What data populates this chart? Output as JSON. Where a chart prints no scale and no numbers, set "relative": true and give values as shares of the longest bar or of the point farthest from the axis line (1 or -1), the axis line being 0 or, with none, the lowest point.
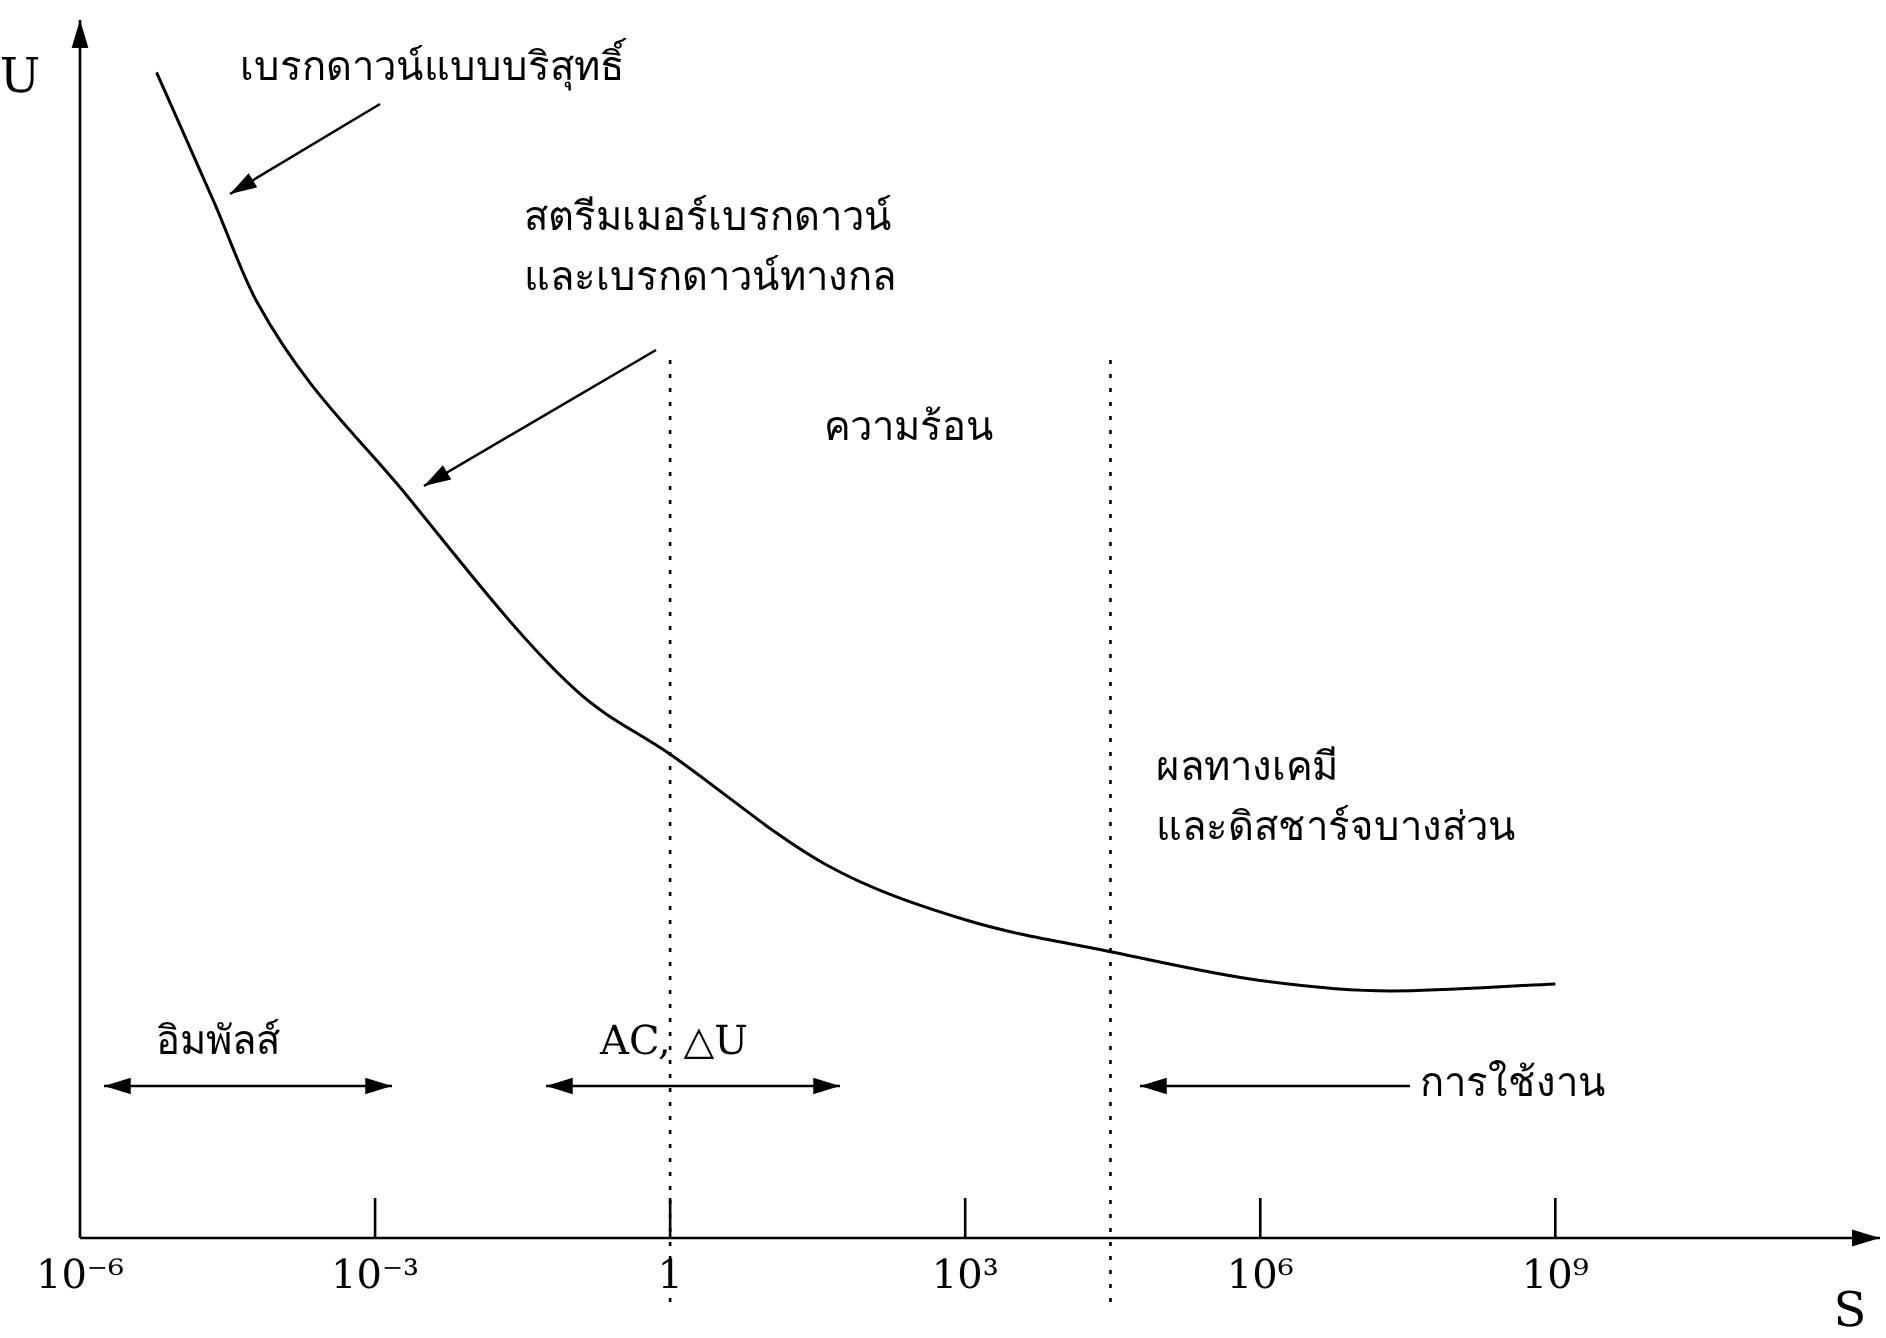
{
  "chart_data": {
    "type": "line",
    "relative": true,
    "xlabel": "S",
    "ylabel": "U",
    "log": "x",
    "x": [
      6e-06,
      2.3e-05,
      6.3e-05,
      0.0021,
      0.11,
      1,
      39,
      1000,
      33000,
      1000000,
      21000000,
      1000000000
    ],
    "series": [
      {
        "color": "#000000",
        "values": [
          1,
          0.889,
          0.803,
          0.637,
          0.47,
          0.415,
          0.32,
          0.273,
          0.245,
          0.221,
          0.212,
          0.218
        ]
      }
    ],
    "xlim": [
      1e-06,
      2000000000000.0
    ],
    "xticks": [
      {
        "value": 1e-06,
        "label": "10⁻⁶"
      },
      {
        "value": 0.001,
        "label": "10⁻³"
      },
      1,
      {
        "value": 1000,
        "label": "10³"
      },
      {
        "value": 1000000,
        "label": "10⁶"
      },
      {
        "value": 1000000000,
        "label": "10⁹"
      }
    ],
    "ref_lines": [
      {
        "axis": "x",
        "value": 1,
        "line_style": "dotted",
        "color": "#000000"
      },
      {
        "axis": "x",
        "value": 30000,
        "line_style": "dotted",
        "color": "#000000"
      }
    ],
    "annotations": [
      "เบรกดาวน์แบบบริสุทธิ์",
      "สตรีมเมอร์เบรกดาวน์\nและเบรกดาวน์ทางกล",
      "ความร้อน",
      "ผลทางเคมี\nและดิสชาร์จบางส่วน",
      "อิมพัลส์",
      "AC, △U",
      "การใช้งาน"
    ],
    "grid": false,
    "legend": false,
    "marker": "none",
    "line_style": "solid"
  }
}
